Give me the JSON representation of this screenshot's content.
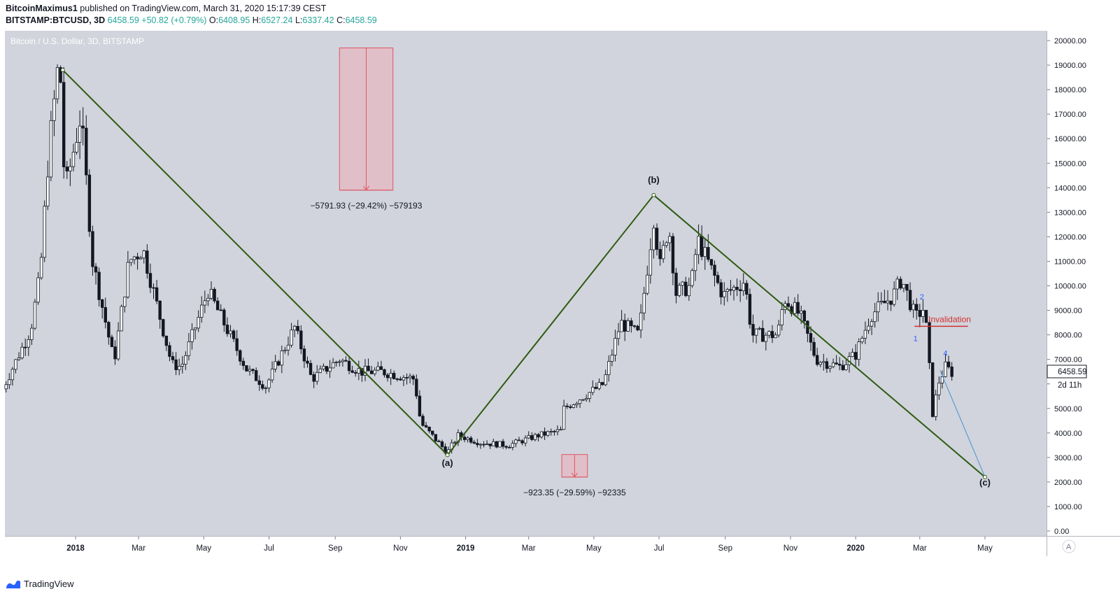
{
  "header": {
    "author": "BitcoinMaximus1",
    "published": "published on TradingView.com, March 31, 2020 15:17:39 CEST",
    "symbol": "BITSTAMP:BTCUSD, 3D",
    "last": "6458.59",
    "change": "+50.82 (+0.79%)",
    "o_label": "O:",
    "o": "6408.95",
    "h_label": "H:",
    "h": "6527.24",
    "l_label": "L:",
    "l": "6337.42",
    "c_label": "C:",
    "c": "6458.59"
  },
  "footer": {
    "brand": "TradingView"
  },
  "colors": {
    "plot_bg": "#d1d4dc",
    "candle": "#131722",
    "wave_line": "#2e5b12",
    "projection": "#5b9bd5",
    "measure_fill": "#f2a7b0",
    "measure_line": "#e05563",
    "invalidation": "#d32f2f",
    "wave_label": "#2962ff"
  },
  "chart_data": {
    "type": "candlestick",
    "title": "Bitcoin / U.S. Dollar, 3D, BITSTAMP",
    "y_axis": {
      "ticks": [
        "0.00",
        "1000.00",
        "2000.00",
        "3000.00",
        "4000.00",
        "5000.00",
        "6000.00",
        "7000.00",
        "8000.00",
        "9000.00",
        "10000.00",
        "11000.00",
        "12000.00",
        "13000.00",
        "14000.00",
        "15000.00",
        "16000.00",
        "17000.00",
        "18000.00",
        "19000.00",
        "20000.00"
      ],
      "range": [
        0,
        20000
      ]
    },
    "x_axis": {
      "ticks": [
        "2018",
        "Mar",
        "May",
        "Jul",
        "Sep",
        "Nov",
        "2019",
        "Mar",
        "May",
        "Jul",
        "Sep",
        "Nov",
        "2020",
        "Mar",
        "May"
      ],
      "tick_dates": [
        "2018-01-01",
        "2018-03-01",
        "2018-05-01",
        "2018-07-01",
        "2018-09-01",
        "2018-11-01",
        "2019-01-01",
        "2019-03-01",
        "2019-05-01",
        "2019-07-01",
        "2019-09-01",
        "2019-11-01",
        "2020-01-01",
        "2020-03-01",
        "2020-05-01"
      ]
    },
    "last_price": "6458.59",
    "countdown": "2d 11h",
    "price_path": [
      [
        "2017-10-25",
        5800
      ],
      [
        "2017-11-08",
        7100
      ],
      [
        "2017-11-20",
        8200
      ],
      [
        "2017-11-29",
        10500
      ],
      [
        "2017-12-07",
        15500
      ],
      [
        "2017-12-17",
        19500
      ],
      [
        "2017-12-22",
        13800
      ],
      [
        "2018-01-06",
        17000
      ],
      [
        "2018-01-17",
        11000
      ],
      [
        "2018-02-06",
        6900
      ],
      [
        "2018-02-20",
        11000
      ],
      [
        "2018-03-05",
        11500
      ],
      [
        "2018-04-01",
        6800
      ],
      [
        "2018-04-10",
        6700
      ],
      [
        "2018-05-05",
        9800
      ],
      [
        "2018-06-10",
        6600
      ],
      [
        "2018-06-28",
        5900
      ],
      [
        "2018-07-25",
        8300
      ],
      [
        "2018-08-10",
        6200
      ],
      [
        "2018-09-05",
        7000
      ],
      [
        "2018-09-25",
        6500
      ],
      [
        "2018-10-15",
        6500
      ],
      [
        "2018-11-14",
        6200
      ],
      [
        "2018-11-20",
        4400
      ],
      [
        "2018-12-15",
        3200
      ],
      [
        "2018-12-25",
        3900
      ],
      [
        "2019-01-15",
        3600
      ],
      [
        "2019-02-10",
        3500
      ],
      [
        "2019-03-10",
        3900
      ],
      [
        "2019-04-01",
        4100
      ],
      [
        "2019-04-03",
        5000
      ],
      [
        "2019-05-10",
        6000
      ],
      [
        "2019-05-26",
        8500
      ],
      [
        "2019-06-12",
        8000
      ],
      [
        "2019-06-26",
        12800
      ],
      [
        "2019-07-02",
        10800
      ],
      [
        "2019-07-10",
        12500
      ],
      [
        "2019-07-17",
        9700
      ],
      [
        "2019-07-31",
        10000
      ],
      [
        "2019-08-06",
        11900
      ],
      [
        "2019-08-30",
        9600
      ],
      [
        "2019-09-19",
        10200
      ],
      [
        "2019-09-26",
        8000
      ],
      [
        "2019-10-20",
        8000
      ],
      [
        "2019-10-26",
        9500
      ],
      [
        "2019-11-10",
        8800
      ],
      [
        "2019-11-25",
        7000
      ],
      [
        "2019-12-17",
        6700
      ],
      [
        "2020-01-01",
        7200
      ],
      [
        "2020-01-15",
        8800
      ],
      [
        "2020-02-05",
        9600
      ],
      [
        "2020-02-13",
        10300
      ],
      [
        "2020-02-26",
        8700
      ],
      [
        "2020-03-05",
        9100
      ],
      [
        "2020-03-08",
        7900
      ],
      [
        "2020-03-13",
        4800
      ],
      [
        "2020-03-19",
        6100
      ],
      [
        "2020-03-25",
        6700
      ],
      [
        "2020-03-31",
        6460
      ]
    ],
    "wave_lines": [
      {
        "from": [
          "2017-12-20",
          18800
        ],
        "to": [
          "2018-12-15",
          3100
        ]
      },
      {
        "from": [
          "2018-12-15",
          3100
        ],
        "to": [
          "2019-06-26",
          13700
        ]
      },
      {
        "from": [
          "2019-06-26",
          13700
        ],
        "to": [
          "2020-05-01",
          2200
        ]
      }
    ],
    "projection": [
      [
        "2020-03-20",
        6550
      ],
      [
        "2020-05-01",
        2200
      ]
    ],
    "wave_labels": [
      {
        "text": "(a)",
        "date": "2018-12-15",
        "price": 2650
      },
      {
        "text": "(b)",
        "date": "2019-06-26",
        "price": 14200
      },
      {
        "text": "(c)",
        "date": "2020-05-01",
        "price": 1850
      }
    ],
    "sub_wave_labels": [
      {
        "text": "1",
        "date": "2020-02-26",
        "price": 7750
      },
      {
        "text": "2",
        "date": "2020-03-03",
        "price": 9450
      },
      {
        "text": "4",
        "date": "2020-03-25",
        "price": 7150
      }
    ],
    "measures": [
      {
        "x_from": "2018-09-05",
        "x_to": "2018-10-25",
        "top": 19700,
        "bottom": 13900,
        "label": "−5791.93 (−29.42%) −579193"
      },
      {
        "x_from": "2019-04-01",
        "x_to": "2019-04-25",
        "top": 3120,
        "bottom": 2200,
        "label": "−923.35 (−29.59%) −92335"
      }
    ],
    "invalidation": {
      "label": "Invalidation",
      "price": 8350,
      "x_from": "2020-02-25",
      "x_to": "2020-04-15"
    }
  }
}
